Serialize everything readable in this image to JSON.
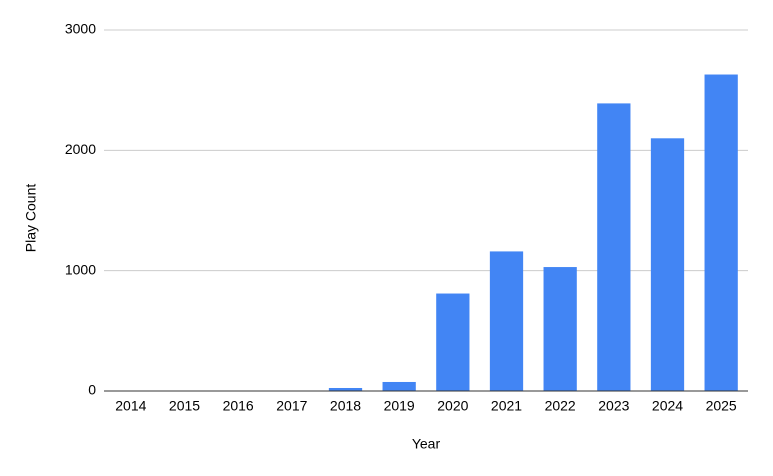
{
  "chart_data": {
    "type": "bar",
    "x_label": "Year",
    "y_label": "Play Count",
    "categories": [
      "2014",
      "2015",
      "2016",
      "2017",
      "2018",
      "2019",
      "2020",
      "2021",
      "2022",
      "2023",
      "2024",
      "2025"
    ],
    "values": [
      0,
      0,
      0,
      0,
      25,
      75,
      810,
      1160,
      1030,
      2390,
      2100,
      2630
    ],
    "color": "#4285f4",
    "ylim": [
      0,
      3000
    ],
    "yticks": [
      0,
      1000,
      2000,
      3000
    ],
    "grid": true
  }
}
